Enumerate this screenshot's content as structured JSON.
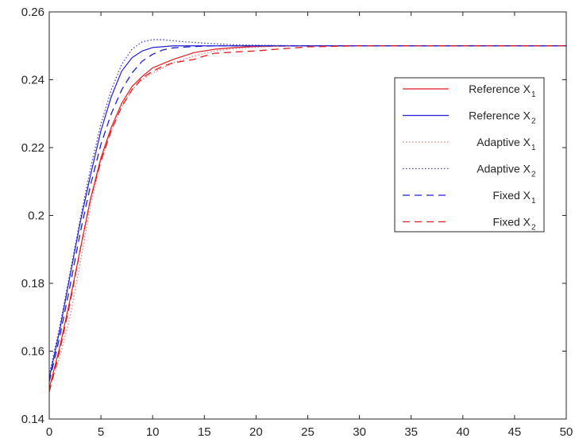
{
  "chart_data": {
    "type": "line",
    "title": "",
    "xlabel": "",
    "ylabel": "",
    "xlim": [
      0,
      50
    ],
    "ylim": [
      0.14,
      0.26
    ],
    "xticks": [
      0,
      5,
      10,
      15,
      20,
      25,
      30,
      35,
      40,
      45,
      50
    ],
    "xtick_labels": [
      "0",
      "5",
      "10",
      "15",
      "20",
      "25",
      "30",
      "35",
      "40",
      "45",
      "50"
    ],
    "yticks": [
      0.14,
      0.16,
      0.18,
      0.2,
      0.22,
      0.24,
      0.26
    ],
    "ytick_labels": [
      "0.14",
      "0.16",
      "0.18",
      "0.2",
      "0.22",
      "0.24",
      "0.26"
    ],
    "grid": false,
    "legend_position": "top-right",
    "series": [
      {
        "label": "Reference X",
        "sub": "1",
        "color": "#e41a1c",
        "style": "solid",
        "x": [
          0,
          1,
          2,
          3,
          4,
          5,
          6,
          7,
          8,
          9,
          10,
          12,
          14,
          16,
          18,
          20,
          22,
          25,
          30,
          40,
          50
        ],
        "y": [
          0.149,
          0.161,
          0.175,
          0.19,
          0.205,
          0.217,
          0.226,
          0.233,
          0.238,
          0.241,
          0.2435,
          0.246,
          0.248,
          0.249,
          0.2495,
          0.2498,
          0.2499,
          0.25,
          0.25,
          0.25,
          0.25
        ]
      },
      {
        "label": "Reference X",
        "sub": "2",
        "color": "#1f1fd6",
        "style": "solid",
        "x": [
          0,
          1,
          2,
          3,
          4,
          5,
          6,
          7,
          8,
          9,
          10,
          12,
          14,
          16,
          20,
          25,
          30,
          40,
          50
        ],
        "y": [
          0.152,
          0.166,
          0.182,
          0.198,
          0.212,
          0.225,
          0.235,
          0.2425,
          0.2465,
          0.2485,
          0.2495,
          0.25,
          0.25,
          0.25,
          0.25,
          0.25,
          0.25,
          0.25,
          0.25
        ]
      },
      {
        "label": "Adaptive  X",
        "sub": "1",
        "color": "#f07070",
        "style": "dotted",
        "x": [
          0,
          1,
          2,
          3,
          4,
          5,
          6,
          7,
          8,
          9,
          10,
          11,
          12,
          14,
          16,
          18,
          20,
          22,
          25,
          30,
          40,
          50
        ],
        "y": [
          0.149,
          0.158,
          0.17,
          0.186,
          0.203,
          0.216,
          0.225,
          0.232,
          0.237,
          0.24,
          0.242,
          0.2435,
          0.245,
          0.247,
          0.2485,
          0.2492,
          0.2496,
          0.2499,
          0.25,
          0.25,
          0.25,
          0.25
        ]
      },
      {
        "label": "Adaptive X",
        "sub": "2",
        "color": "#3a3ad6",
        "style": "dotted",
        "x": [
          0,
          1,
          2,
          3,
          4,
          5,
          6,
          7,
          8,
          9,
          10,
          11,
          12,
          13,
          14,
          16,
          18,
          20,
          25,
          30,
          40,
          50
        ],
        "y": [
          0.153,
          0.167,
          0.183,
          0.199,
          0.214,
          0.227,
          0.237,
          0.2445,
          0.249,
          0.2512,
          0.2518,
          0.2518,
          0.2515,
          0.2512,
          0.251,
          0.2506,
          0.2503,
          0.2502,
          0.25,
          0.25,
          0.25,
          0.25
        ]
      },
      {
        "label": "Fixed X",
        "sub": "1",
        "color": "#1f1fd6",
        "style": "dashed",
        "x": [
          0,
          1,
          2,
          3,
          4,
          5,
          6,
          7,
          8,
          9,
          10,
          11,
          12,
          14,
          16,
          18,
          20,
          25,
          30,
          40,
          50
        ],
        "y": [
          0.151,
          0.164,
          0.179,
          0.195,
          0.209,
          0.221,
          0.23,
          0.237,
          0.242,
          0.2455,
          0.2475,
          0.2488,
          0.2494,
          0.2498,
          0.25,
          0.25,
          0.25,
          0.25,
          0.25,
          0.25,
          0.25
        ]
      },
      {
        "label": "Fixed X",
        "sub": "2",
        "color": "#e41a1c",
        "style": "dashed",
        "x": [
          0,
          1,
          2,
          3,
          4,
          5,
          6,
          7,
          8,
          9,
          10,
          11,
          12,
          13,
          14,
          15,
          16,
          18,
          20,
          22,
          25,
          30,
          40,
          50
        ],
        "y": [
          0.148,
          0.16,
          0.174,
          0.19,
          0.205,
          0.216,
          0.225,
          0.232,
          0.237,
          0.2405,
          0.2425,
          0.244,
          0.245,
          0.2455,
          0.246,
          0.247,
          0.2478,
          0.2482,
          0.2485,
          0.249,
          0.2497,
          0.25,
          0.25,
          0.25
        ]
      }
    ]
  }
}
